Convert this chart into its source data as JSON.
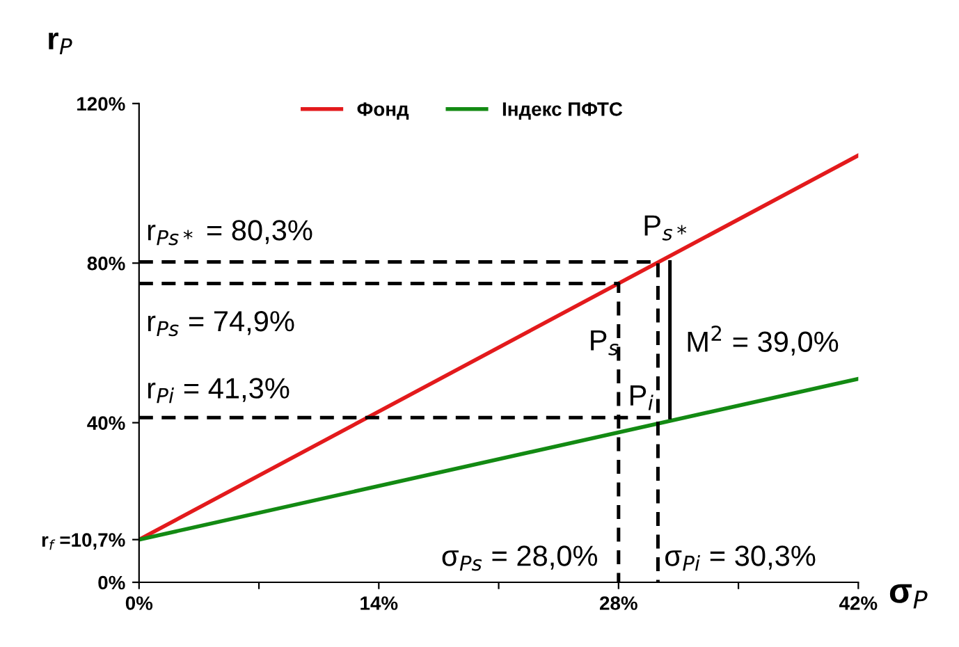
{
  "chart_data": {
    "type": "line",
    "xlabel": "σ$_{P}$",
    "ylabel": "r$_{P}$",
    "xlim": [
      0,
      42
    ],
    "ylim": [
      0,
      120
    ],
    "xticks": [
      {
        "value": 0,
        "label": "0%"
      },
      {
        "value": 7,
        "label": null
      },
      {
        "value": 14,
        "label": "14%"
      },
      {
        "value": 21,
        "label": null
      },
      {
        "value": 28,
        "label": "28%"
      },
      {
        "value": 35,
        "label": null
      },
      {
        "value": 42,
        "label": "42%"
      }
    ],
    "yticks": [
      {
        "value": 0,
        "label": "0%"
      },
      {
        "value": 10.7,
        "label": "r$_{f}$ =10,7%"
      },
      {
        "value": 40,
        "label": "40%"
      },
      {
        "value": 80,
        "label": "80%"
      },
      {
        "value": 120,
        "label": "120%"
      }
    ],
    "grid": false,
    "legend": "top",
    "marker": "none",
    "series": [
      {
        "name": "Фонд",
        "color": "#e31a1c",
        "x": [
          0,
          42
        ],
        "values": [
          10.7,
          107
        ],
        "line_style": "solid"
      },
      {
        "name": "Індекс ПФТС",
        "color": "#138a13",
        "x": [
          0,
          42
        ],
        "values": [
          10.7,
          51
        ],
        "line_style": "solid"
      },
      {
        "color": "#000000",
        "x": [
          0,
          30.3,
          30.3
        ],
        "values": [
          80.3,
          80.3,
          0
        ],
        "line_style": "dashed"
      },
      {
        "color": "#000000",
        "x": [
          0,
          28,
          28
        ],
        "values": [
          74.9,
          74.9,
          0
        ],
        "line_style": "dashed"
      },
      {
        "color": "#000000",
        "x": [
          0,
          30.3
        ],
        "values": [
          41.3,
          41.3
        ],
        "line_style": "dashed"
      },
      {
        "color": "#000000",
        "x": [
          31,
          31
        ],
        "values": [
          41.3,
          80.3
        ],
        "line_style": "solid"
      }
    ],
    "annotations": [
      "r$_{Ps*}$ = 80,3%",
      "r$_{Ps}$ = 74,9%",
      "r$_{Pi}$ = 41,3%",
      "P$_{s*}$",
      "P$_{s}$",
      "P$_{i}$",
      "M$^{2}$ = 39,0%",
      "σ$_{Ps}$ = 28,0%",
      "σ$_{Pi}$ = 30,3%"
    ]
  }
}
